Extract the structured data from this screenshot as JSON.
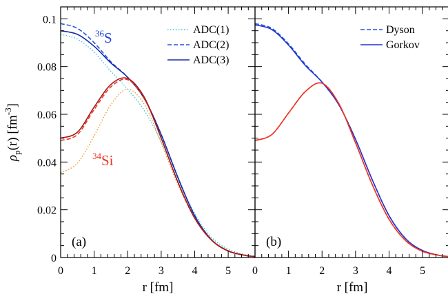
{
  "chart_data": {
    "type": "line",
    "xlabel": "r [fm]",
    "ylabel": "ρ_p(r) [fm^-3]",
    "xlim": [
      0,
      5.8
    ],
    "ylim": [
      0,
      0.105
    ],
    "x_ticks": [
      "0",
      "1",
      "2",
      "3",
      "4",
      "5"
    ],
    "y_ticks": [
      "0",
      "0.02",
      "0.04",
      "0.06",
      "0.08",
      "0.1"
    ],
    "grid": false,
    "panels": [
      {
        "label": "(a)",
        "legend_position": "top-right",
        "legend": [
          "ADC(1)",
          "ADC(2)",
          "ADC(3)"
        ],
        "annotations": [
          {
            "mass": "36",
            "element": "S",
            "color": "#2244dd"
          },
          {
            "mass": "34",
            "element": "Si",
            "color": "#ee3322"
          }
        ],
        "series": [
          {
            "name": "ADC(1)",
            "nucleus": "36S",
            "style": "dotted",
            "color": "#33c8e0",
            "x": [
              0,
              0.5,
              1,
              1.5,
              2,
              2.5,
              3,
              3.5,
              4,
              4.5,
              5,
              5.5,
              5.8
            ],
            "y": [
              0.0935,
              0.0915,
              0.086,
              0.078,
              0.0705,
              0.0615,
              0.0485,
              0.0325,
              0.0185,
              0.0085,
              0.0035,
              0.0012,
              0.0006
            ]
          },
          {
            "name": "ADC(2)",
            "nucleus": "36S",
            "style": "dashed",
            "color": "#2255dd",
            "x": [
              0,
              0.5,
              1,
              1.5,
              2,
              2.5,
              3,
              3.5,
              4,
              4.5,
              5,
              5.5,
              5.8
            ],
            "y": [
              0.098,
              0.096,
              0.09,
              0.082,
              0.0755,
              0.0665,
              0.0515,
              0.0335,
              0.0175,
              0.0075,
              0.0028,
              0.0009,
              0.0004
            ]
          },
          {
            "name": "ADC(3)",
            "nucleus": "36S",
            "style": "solid",
            "color": "#1a2aa8",
            "x": [
              0,
              0.5,
              1,
              1.5,
              2,
              2.5,
              3,
              3.5,
              4,
              4.5,
              5,
              5.5,
              5.8
            ],
            "y": [
              0.095,
              0.0935,
              0.0885,
              0.0815,
              0.0755,
              0.0665,
              0.0515,
              0.0335,
              0.0175,
              0.0075,
              0.0028,
              0.0009,
              0.0004
            ]
          },
          {
            "name": "ADC(1)",
            "nucleus": "34Si",
            "style": "dotted",
            "color": "#e89a22",
            "x": [
              0,
              0.5,
              1,
              1.5,
              2,
              2.5,
              3,
              3.5,
              4,
              4.5,
              5,
              5.5,
              5.8
            ],
            "y": [
              0.0355,
              0.0395,
              0.051,
              0.064,
              0.0705,
              0.064,
              0.048,
              0.0305,
              0.0165,
              0.0075,
              0.003,
              0.0011,
              0.0005
            ]
          },
          {
            "name": "ADC(2)",
            "nucleus": "34Si",
            "style": "dashed",
            "color": "#ee3322",
            "x": [
              0,
              0.5,
              1,
              1.5,
              2,
              2.5,
              3,
              3.5,
              4,
              4.5,
              5,
              5.5,
              5.8
            ],
            "y": [
              0.049,
              0.0515,
              0.062,
              0.0715,
              0.0745,
              0.0665,
              0.05,
              0.0315,
              0.0165,
              0.0073,
              0.0027,
              0.0009,
              0.0004
            ]
          },
          {
            "name": "ADC(3)",
            "nucleus": "34Si",
            "style": "solid",
            "color": "#a81a1a",
            "x": [
              0,
              0.5,
              1,
              1.5,
              2,
              2.5,
              3,
              3.5,
              4,
              4.5,
              5,
              5.5,
              5.8
            ],
            "y": [
              0.05,
              0.0525,
              0.063,
              0.0725,
              0.075,
              0.067,
              0.05,
              0.0315,
              0.0165,
              0.0073,
              0.0027,
              0.0009,
              0.0004
            ]
          }
        ]
      },
      {
        "label": "(b)",
        "legend_position": "top-right",
        "legend": [
          "Dyson",
          "Gorkov"
        ],
        "series": [
          {
            "name": "Dyson",
            "nucleus": "36S",
            "style": "dashed",
            "color": "#2255dd",
            "x": [
              0,
              0.5,
              1,
              1.5,
              2,
              2.5,
              3,
              3.5,
              4,
              4.5,
              5,
              5.5,
              5.8
            ],
            "y": [
              0.098,
              0.096,
              0.0895,
              0.081,
              0.0735,
              0.064,
              0.0495,
              0.0325,
              0.0175,
              0.0078,
              0.0029,
              0.0009,
              0.0004
            ]
          },
          {
            "name": "Gorkov",
            "nucleus": "36S",
            "style": "solid",
            "color": "#2233cc",
            "x": [
              0,
              0.5,
              1,
              1.5,
              2,
              2.5,
              3,
              3.5,
              4,
              4.5,
              5,
              5.5,
              5.8
            ],
            "y": [
              0.0975,
              0.0955,
              0.089,
              0.0805,
              0.0735,
              0.064,
              0.0495,
              0.0325,
              0.0175,
              0.0078,
              0.0029,
              0.0009,
              0.0004
            ]
          },
          {
            "name": "Dyson",
            "nucleus": "34Si",
            "style": "dashed",
            "color": "#ee3322",
            "x": [
              0,
              0.5,
              1,
              1.5,
              2,
              2.5,
              3,
              3.5,
              4,
              4.5,
              5,
              5.5,
              5.8
            ],
            "y": [
              0.049,
              0.0515,
              0.0605,
              0.0695,
              0.073,
              0.0645,
              0.048,
              0.0305,
              0.016,
              0.007,
              0.0026,
              0.0009,
              0.0004
            ]
          },
          {
            "name": "Gorkov",
            "nucleus": "34Si",
            "style": "solid",
            "color": "#ee3322",
            "x": [
              0,
              0.5,
              1,
              1.5,
              2,
              2.5,
              3,
              3.5,
              4,
              4.5,
              5,
              5.5,
              5.8
            ],
            "y": [
              0.049,
              0.0515,
              0.0605,
              0.0695,
              0.073,
              0.0645,
              0.048,
              0.0305,
              0.016,
              0.007,
              0.0026,
              0.0009,
              0.0004
            ]
          }
        ]
      }
    ]
  }
}
